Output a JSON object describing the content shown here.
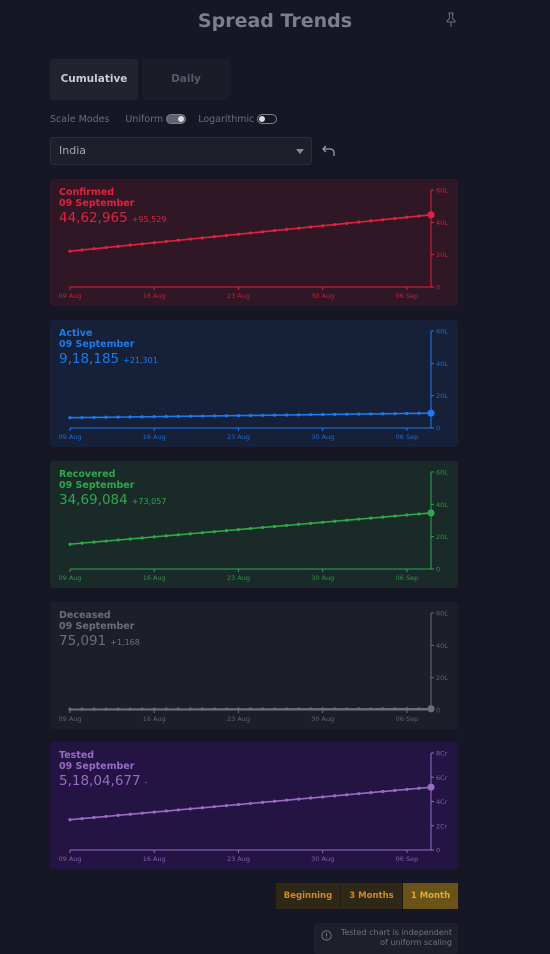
{
  "header": {
    "title": "Spread Trends"
  },
  "tabs": [
    {
      "label": "Cumulative",
      "active": true
    },
    {
      "label": "Daily",
      "active": false
    }
  ],
  "scale": {
    "label": "Scale Modes",
    "uniform_label": "Uniform",
    "uniform_on": true,
    "log_label": "Logarithmic",
    "log_on": false
  },
  "region": {
    "selected": "India"
  },
  "range": {
    "options": [
      "Beginning",
      "3 Months",
      "1 Month"
    ],
    "selected": "1 Month"
  },
  "note": {
    "line1": "Tested chart is independent",
    "line2": "of uniform scaling"
  },
  "chart_data": [
    {
      "type": "line",
      "name": "Confirmed",
      "date": "09 September",
      "value": "44,62,965",
      "delta": "+95,529",
      "color": "#e0223f",
      "bg": "#301726",
      "x_ticks": [
        "09 Aug",
        "16 Aug",
        "23 Aug",
        "30 Aug",
        "06 Sep"
      ],
      "y_ticks": [
        "0",
        "20L",
        "40L",
        "60L"
      ],
      "ylim": [
        0,
        6000000
      ],
      "y_start": 2215074,
      "y_end": 4462965
    },
    {
      "type": "line",
      "name": "Active",
      "date": "09 September",
      "value": "9,18,185",
      "delta": "+21,301",
      "color": "#1e7af0",
      "bg": "#162038",
      "x_ticks": [
        "09 Aug",
        "16 Aug",
        "23 Aug",
        "30 Aug",
        "06 Sep"
      ],
      "y_ticks": [
        "0",
        "20L",
        "40L",
        "60L"
      ],
      "ylim": [
        0,
        6000000
      ],
      "y_start": 634945,
      "y_end": 918185
    },
    {
      "type": "line",
      "name": "Recovered",
      "date": "09 September",
      "value": "34,69,084",
      "delta": "+73,057",
      "color": "#2fa84a",
      "bg": "#1a2a28",
      "x_ticks": [
        "09 Aug",
        "16 Aug",
        "23 Aug",
        "30 Aug",
        "06 Sep"
      ],
      "y_ticks": [
        "0",
        "20L",
        "40L",
        "60L"
      ],
      "ylim": [
        0,
        6000000
      ],
      "y_start": 1535743,
      "y_end": 3469084
    },
    {
      "type": "line",
      "name": "Deceased",
      "date": "09 September",
      "value": "75,091",
      "delta": "+1,168",
      "color": "#6b6e77",
      "bg": "#1e1e2a",
      "x_ticks": [
        "09 Aug",
        "16 Aug",
        "23 Aug",
        "30 Aug",
        "06 Sep"
      ],
      "y_ticks": [
        "0",
        "20L",
        "40L",
        "60L"
      ],
      "ylim": [
        0,
        6000000
      ],
      "y_start": 44386,
      "y_end": 75091
    },
    {
      "type": "line",
      "name": "Tested",
      "date": "09 September",
      "value": "5,18,04,677",
      "delta": "-",
      "color": "#9a6bc4",
      "bg": "#231443",
      "x_ticks": [
        "09 Aug",
        "16 Aug",
        "23 Aug",
        "30 Aug",
        "06 Sep"
      ],
      "y_ticks": [
        "0",
        "2Cr",
        "4Cr",
        "6Cr",
        "8Cr"
      ],
      "ylim": [
        0,
        80000000
      ],
      "y_start": 25000000,
      "y_end": 51804677
    }
  ]
}
